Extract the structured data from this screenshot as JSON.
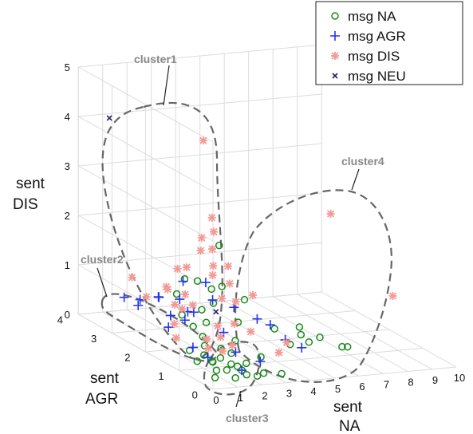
{
  "chart_data": {
    "type": "scatter",
    "projection": "3d",
    "xlabel": [
      "sent",
      "NA"
    ],
    "ylabel": [
      "sent",
      "AGR"
    ],
    "zlabel": [
      "sent",
      "DIS"
    ],
    "xlim": [
      0,
      10
    ],
    "ylim": [
      0,
      4
    ],
    "zlim": [
      0,
      5
    ],
    "x_ticks": [
      "0",
      "1",
      "2",
      "3",
      "4",
      "5",
      "6",
      "7",
      "8",
      "9",
      "10"
    ],
    "y_ticks": [
      "0",
      "1",
      "2",
      "3",
      "4"
    ],
    "z_ticks": [
      "0",
      "1",
      "2",
      "3",
      "4",
      "5"
    ],
    "grid": true,
    "legend_position": "top-right",
    "colors": {
      "na": "#1a8a1a",
      "agr": "#2233ee",
      "dis": "#f29a95",
      "neu": "#222266"
    },
    "series": [
      {
        "name": "msg NA",
        "key": "na",
        "marker": "circle",
        "points": [
          [
            1.2,
            0.6,
            1.8
          ],
          [
            1.5,
            0.9,
            2.5
          ],
          [
            1.3,
            1.4,
            1.6
          ],
          [
            1.0,
            1.8,
            1.2
          ],
          [
            1.6,
            1.2,
            1.5
          ],
          [
            1.4,
            1.0,
            1.3
          ],
          [
            2.0,
            0.7,
            1.0
          ],
          [
            1.2,
            1.2,
            1.1
          ],
          [
            0.8,
            1.5,
            0.9
          ],
          [
            1.6,
            2.0,
            1.4
          ],
          [
            2.4,
            0.8,
            1.4
          ],
          [
            3.5,
            0.7,
            0.8
          ],
          [
            4.0,
            0.6,
            0.5
          ],
          [
            5.0,
            1.0,
            0.5
          ],
          [
            6.0,
            0.5,
            0.4
          ],
          [
            5.5,
            0.8,
            0.5
          ],
          [
            6.5,
            0.7,
            0.3
          ],
          [
            4.5,
            0.4,
            0.6
          ],
          [
            4.8,
            0.9,
            0.7
          ],
          [
            1.0,
            0.5,
            0.4
          ],
          [
            1.3,
            0.4,
            0.3
          ],
          [
            1.6,
            0.3,
            0.2
          ],
          [
            1.1,
            0.8,
            0.2
          ],
          [
            1.2,
            0.2,
            0.1
          ],
          [
            1.4,
            0.6,
            0.1
          ],
          [
            1.7,
            0.5,
            0.2
          ],
          [
            0.8,
            0.6,
            0.3
          ],
          [
            0.6,
            0.9,
            0.2
          ],
          [
            0.7,
            1.2,
            0.3
          ],
          [
            1.8,
            0.3,
            0.1
          ],
          [
            2.2,
            0.6,
            0.2
          ],
          [
            2.5,
            0.3,
            0.1
          ],
          [
            2.0,
            0.9,
            0.3
          ],
          [
            0.9,
            0.9,
            0.5
          ],
          [
            1.1,
            1.1,
            0.6
          ],
          [
            1.3,
            0.7,
            0.5
          ],
          [
            2.1,
            0.2,
            0.1
          ],
          [
            0.7,
            0.4,
            0.2
          ],
          [
            0.6,
            0.7,
            0.4
          ],
          [
            2.8,
            0.6,
            0.3
          ],
          [
            3.1,
            0.2,
            0.1
          ],
          [
            0.5,
            0.3,
            0.1
          ],
          [
            1.4,
            1.6,
            0.6
          ],
          [
            1.8,
            1.5,
            0.7
          ],
          [
            2.3,
            1.0,
            0.5
          ]
        ]
      },
      {
        "name": "msg AGR",
        "key": "agr",
        "marker": "plus",
        "points": [
          [
            1.5,
            1.3,
            1.6
          ],
          [
            1.4,
            1.9,
            1.4
          ],
          [
            0.9,
            1.4,
            1.0
          ],
          [
            0.8,
            2.2,
            1.0
          ],
          [
            0.6,
            2.6,
            0.8
          ],
          [
            0.5,
            3.0,
            0.7
          ],
          [
            0.8,
            2.8,
            0.6
          ],
          [
            1.1,
            2.4,
            0.9
          ],
          [
            1.4,
            2.0,
            1.0
          ],
          [
            2.2,
            1.6,
            1.1
          ],
          [
            2.8,
            1.4,
            1.0
          ],
          [
            3.2,
            1.0,
            0.9
          ],
          [
            3.6,
            0.9,
            0.8
          ],
          [
            3.8,
            0.6,
            0.6
          ],
          [
            4.2,
            0.4,
            0.5
          ],
          [
            2.5,
            0.4,
            0.3
          ],
          [
            1.6,
            0.3,
            0.2
          ],
          [
            0.9,
            0.8,
            0.3
          ],
          [
            0.7,
            1.1,
            0.4
          ],
          [
            1.9,
            0.7,
            0.4
          ],
          [
            2.1,
            1.2,
            0.6
          ],
          [
            1.2,
            1.7,
            0.7
          ],
          [
            0.8,
            1.9,
            0.5
          ],
          [
            1.3,
            2.2,
            0.6
          ],
          [
            1.7,
            1.8,
            0.8
          ]
        ]
      },
      {
        "name": "msg DIS",
        "key": "dis",
        "marker": "star",
        "points": [
          [
            3.2,
            2.6,
            3.9
          ],
          [
            2.8,
            2.0,
            2.3
          ],
          [
            2.3,
            2.0,
            2.2
          ],
          [
            2.6,
            1.9,
            2.0
          ],
          [
            2.4,
            2.1,
            1.9
          ],
          [
            3.0,
            2.2,
            2.5
          ],
          [
            2.7,
            1.5,
            1.8
          ],
          [
            2.5,
            1.8,
            1.7
          ],
          [
            2.1,
            2.3,
            1.5
          ],
          [
            2.0,
            2.5,
            1.4
          ],
          [
            2.2,
            1.6,
            1.6
          ],
          [
            2.9,
            1.6,
            1.4
          ],
          [
            1.4,
            2.4,
            1.1
          ],
          [
            1.1,
            3.2,
            1.0
          ],
          [
            1.6,
            2.5,
            1.0
          ],
          [
            1.9,
            2.2,
            1.0
          ],
          [
            2.3,
            1.4,
            1.2
          ],
          [
            2.6,
            1.2,
            1.2
          ],
          [
            3.3,
            1.2,
            1.3
          ],
          [
            1.2,
            2.0,
            0.9
          ],
          [
            1.0,
            2.7,
            0.8
          ],
          [
            1.5,
            2.0,
            0.8
          ],
          [
            1.8,
            1.9,
            0.9
          ],
          [
            2.4,
            1.1,
            0.8
          ],
          [
            2.8,
            0.9,
            0.7
          ],
          [
            1.4,
            1.2,
            0.5
          ],
          [
            1.7,
            1.0,
            0.6
          ],
          [
            2.0,
            1.3,
            0.7
          ],
          [
            1.9,
            0.8,
            0.5
          ],
          [
            0.9,
            1.8,
            0.6
          ],
          [
            0.7,
            1.6,
            0.4
          ],
          [
            1.2,
            1.0,
            0.4
          ],
          [
            1.5,
            0.8,
            0.4
          ],
          [
            4.0,
            0.7,
            0.5
          ],
          [
            3.4,
            0.5,
            0.4
          ],
          [
            8.5,
            0.8,
            1.2
          ],
          [
            6.5,
            1.2,
            2.8
          ]
        ]
      },
      {
        "name": "msg NEU",
        "key": "neu",
        "marker": "x",
        "points": [
          [
            1.0,
            3.8,
            4.0
          ],
          [
            2.2,
            1.5,
            0.9
          ]
        ]
      }
    ],
    "annotations": [
      "cluster1",
      "cluster2",
      "cluster3",
      "cluster4"
    ]
  }
}
